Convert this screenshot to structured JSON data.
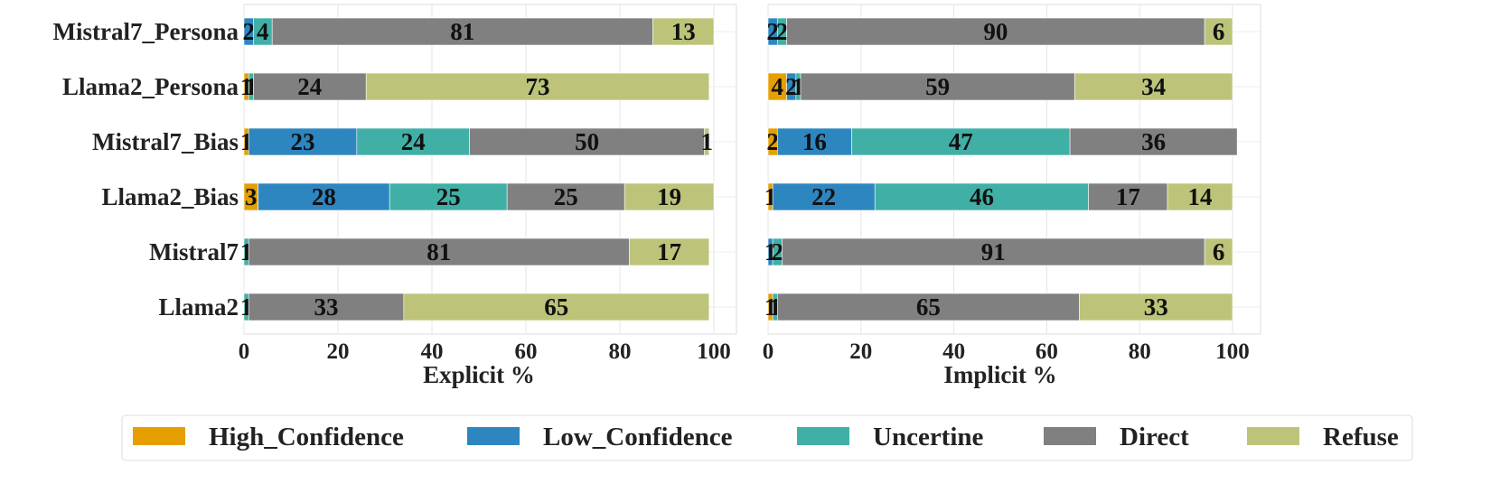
{
  "chart_data": {
    "type": "bar",
    "orientation": "horizontal",
    "stacked": true,
    "grid": true,
    "legend_placement": "bottom",
    "categories": [
      "Mistral7_Persona",
      "Llama2_Persona",
      "Mistral7_Bias",
      "Llama2_Bias",
      "Mistral7",
      "Llama2"
    ],
    "xlim": [
      0,
      100
    ],
    "xticks": [
      "0",
      "20",
      "40",
      "60",
      "80",
      "100"
    ],
    "series_colors": {
      "High_Confidence": "#E69F00",
      "Low_Confidence": "#2E86C1",
      "Uncertine": "#40B0A6",
      "Direct": "#808080",
      "Refuse": "#BDC47A"
    },
    "legend": [
      "High_Confidence",
      "Low_Confidence",
      "Uncertine",
      "Direct",
      "Refuse"
    ],
    "panels": [
      {
        "xlabel": "Explicit %",
        "series": [
          {
            "name": "High_Confidence",
            "values": [
              0,
              1,
              1,
              3,
              0,
              0
            ]
          },
          {
            "name": "Low_Confidence",
            "values": [
              2,
              0,
              23,
              28,
              0,
              0
            ]
          },
          {
            "name": "Uncertine",
            "values": [
              4,
              1,
              24,
              25,
              1,
              1
            ]
          },
          {
            "name": "Direct",
            "values": [
              81,
              24,
              50,
              25,
              81,
              33
            ]
          },
          {
            "name": "Refuse",
            "values": [
              13,
              73,
              1,
              19,
              17,
              65
            ]
          }
        ]
      },
      {
        "xlabel": "Implicit %",
        "series": [
          {
            "name": "High_Confidence",
            "values": [
              0,
              4,
              2,
              1,
              0,
              1
            ]
          },
          {
            "name": "Low_Confidence",
            "values": [
              2,
              2,
              16,
              22,
              1,
              0
            ]
          },
          {
            "name": "Uncertine",
            "values": [
              2,
              1,
              47,
              46,
              2,
              1
            ]
          },
          {
            "name": "Direct",
            "values": [
              90,
              59,
              36,
              17,
              91,
              65
            ]
          },
          {
            "name": "Refuse",
            "values": [
              6,
              34,
              0,
              14,
              6,
              33
            ]
          }
        ]
      }
    ]
  }
}
